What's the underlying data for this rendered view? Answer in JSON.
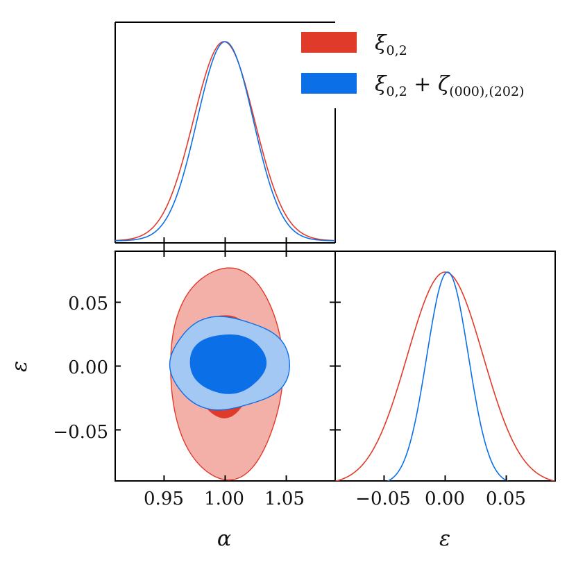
{
  "chart_data": {
    "type": "corner",
    "parameters": [
      "α",
      "ε"
    ],
    "series": [
      {
        "name": "ξ0,2",
        "name_main": "ξ",
        "name_sub": "0,2",
        "color": "#e03a2a",
        "fill_2sigma": "#f2b0a8",
        "fill_1sigma": "#e03a2a",
        "alpha_peak": 0.999,
        "alpha_sigma": 0.025,
        "eps_peak": 0.0,
        "eps_sigma": 0.031
      },
      {
        "name": "ξ0,2 + ζ(000),(202)",
        "name_main": "ξ",
        "name_sub": "0,2",
        "name_plus": " + ζ",
        "name_sub2": "(000),(202)",
        "color": "#0b6fe8",
        "fill_2sigma": "#a4c8f4",
        "fill_1sigma": "#0b6fe8",
        "alpha_peak": 1.0,
        "alpha_sigma": 0.023,
        "eps_peak": 0.002,
        "eps_sigma": 0.017
      }
    ],
    "alpha_range": [
      0.91,
      1.09
    ],
    "eps_range": [
      -0.09,
      0.09
    ],
    "alpha_ticks": [
      0.95,
      1.0,
      1.05
    ],
    "alpha_tick_labels": [
      "0.95",
      "1.00",
      "1.05"
    ],
    "eps_ticks": [
      -0.05,
      0.0,
      0.05
    ],
    "eps_tick_labels": [
      "−0.05",
      "0.00",
      "0.05"
    ],
    "xlabel_alpha": "α",
    "xlabel_eps": "ε",
    "ylabel_eps": "ε",
    "legend_position": "top-right"
  }
}
